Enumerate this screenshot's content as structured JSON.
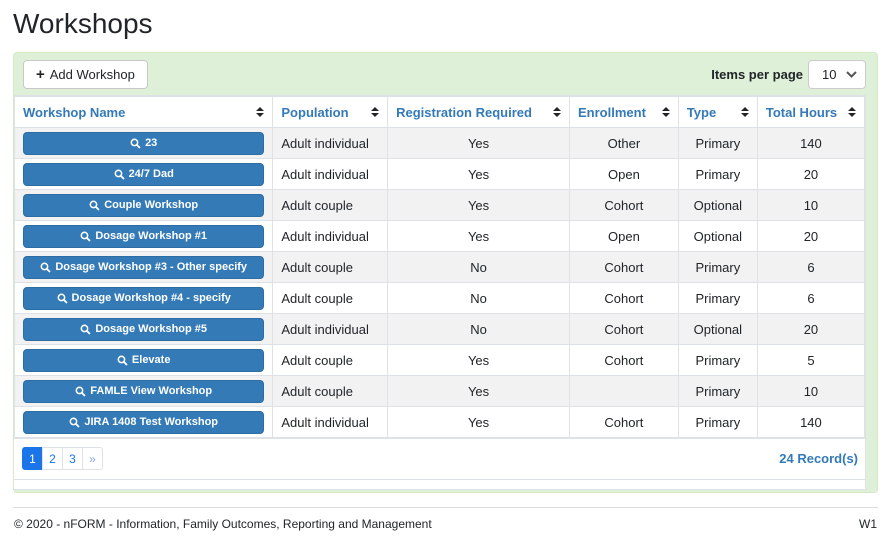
{
  "page": {
    "title": "Workshops"
  },
  "colors": {
    "accent": "#337ab7",
    "panel_bg": "#dff0d8",
    "page_active": "#1b74e8"
  },
  "toolbar": {
    "add_button": "Add Workshop",
    "items_per_page_label": "Items per page",
    "page_size": "10"
  },
  "table": {
    "headers": [
      "Workshop Name",
      "Population",
      "Registration Required",
      "Enrollment",
      "Type",
      "Total Hours"
    ],
    "rows": [
      {
        "name": "23",
        "population": "Adult individual",
        "registration_required": "Yes",
        "enrollment": "Other",
        "type": "Primary",
        "total_hours": "140"
      },
      {
        "name": "24/7 Dad",
        "population": "Adult individual",
        "registration_required": "Yes",
        "enrollment": "Open",
        "type": "Primary",
        "total_hours": "20"
      },
      {
        "name": "Couple Workshop",
        "population": "Adult couple",
        "registration_required": "Yes",
        "enrollment": "Cohort",
        "type": "Optional",
        "total_hours": "10"
      },
      {
        "name": "Dosage Workshop #1",
        "population": "Adult individual",
        "registration_required": "Yes",
        "enrollment": "Open",
        "type": "Optional",
        "total_hours": "20"
      },
      {
        "name": "Dosage Workshop #3 - Other specify",
        "population": "Adult couple",
        "registration_required": "No",
        "enrollment": "Cohort",
        "type": "Primary",
        "total_hours": "6"
      },
      {
        "name": "Dosage Workshop #4 - specify",
        "population": "Adult couple",
        "registration_required": "No",
        "enrollment": "Cohort",
        "type": "Primary",
        "total_hours": "6"
      },
      {
        "name": "Dosage Workshop #5",
        "population": "Adult individual",
        "registration_required": "No",
        "enrollment": "Cohort",
        "type": "Optional",
        "total_hours": "20"
      },
      {
        "name": "Elevate",
        "population": "Adult couple",
        "registration_required": "Yes",
        "enrollment": "Cohort",
        "type": "Primary",
        "total_hours": "5"
      },
      {
        "name": "FAMLE View Workshop",
        "population": "Adult couple",
        "registration_required": "Yes",
        "enrollment": "",
        "type": "Primary",
        "total_hours": "10"
      },
      {
        "name": "JIRA 1408 Test Workshop",
        "population": "Adult individual",
        "registration_required": "Yes",
        "enrollment": "Cohort",
        "type": "Primary",
        "total_hours": "140"
      }
    ]
  },
  "pagination": {
    "pages": [
      {
        "label": "1",
        "active": true
      },
      {
        "label": "2",
        "active": false
      },
      {
        "label": "3",
        "active": false
      },
      {
        "label": "»",
        "active": false
      }
    ],
    "records": "24 Record(s)"
  },
  "footer": {
    "copyright": "© 2020 - nFORM - Information, Family Outcomes, Reporting and Management",
    "version": "W1"
  }
}
